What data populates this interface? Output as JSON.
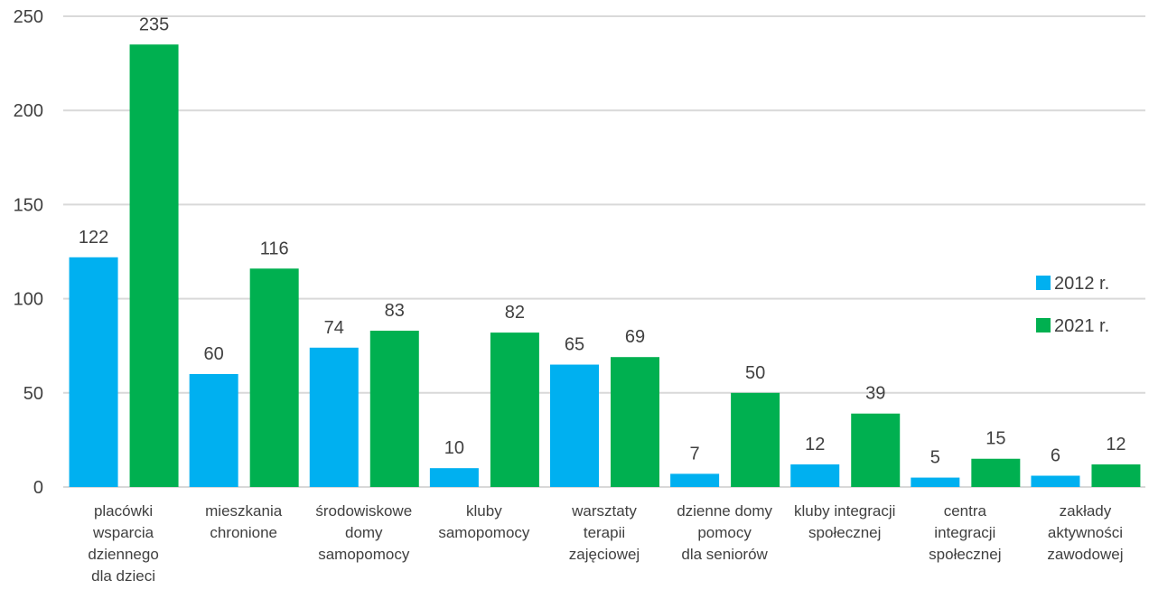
{
  "chart_data": {
    "type": "bar",
    "title": "",
    "xlabel": "",
    "ylabel": "",
    "ylim": [
      0,
      250
    ],
    "yticks": [
      0,
      50,
      100,
      150,
      200,
      250
    ],
    "grid": true,
    "legend_position": "right",
    "categories": [
      [
        "placówki",
        "wsparcia",
        "dziennego",
        "dla dzieci"
      ],
      [
        "mieszkania",
        "chronione"
      ],
      [
        "środowiskowe",
        "domy",
        "samopomocy"
      ],
      [
        "kluby",
        "samopomocy"
      ],
      [
        "warsztaty",
        "terapii",
        "zajęciowej"
      ],
      [
        "dzienne domy",
        "pomocy",
        "dla seniorów"
      ],
      [
        "kluby integracji",
        "społecznej"
      ],
      [
        "centra",
        "integracji",
        "społecznej"
      ],
      [
        "zakłady",
        "aktywności",
        "zawodowej"
      ]
    ],
    "series": [
      {
        "name": "2012 r.",
        "color": "#00b0f0",
        "values": [
          122,
          60,
          74,
          10,
          65,
          7,
          12,
          5,
          6
        ]
      },
      {
        "name": "2021 r.",
        "color": "#00b050",
        "values": [
          235,
          116,
          83,
          82,
          69,
          50,
          39,
          15,
          12
        ]
      }
    ]
  }
}
